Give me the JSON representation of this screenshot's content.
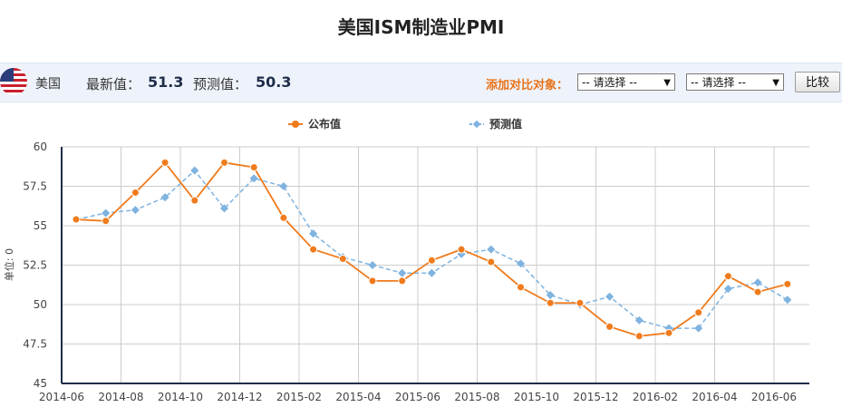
{
  "page": {
    "title": "美国ISM制造业PMI",
    "country": "美国",
    "latest_label": "最新值：",
    "latest_value": "51.3",
    "forecast_label": "预测值：",
    "forecast_value": "50.3",
    "compare_label": "添加对比对象：",
    "select1": "-- 请选择 --",
    "select2": "-- 请选择 --",
    "compare_button": "比较"
  },
  "colors": {
    "published": "#f07b1c",
    "forecast": "#7fb3e0",
    "axis": "#1f2d4a",
    "grid": "#cccccc"
  },
  "chart_data": {
    "type": "line",
    "ylabel": "单位: 0",
    "ylim": [
      45,
      60
    ],
    "yticks": [
      "45",
      "47.5",
      "50",
      "52.5",
      "55",
      "57.5",
      "60"
    ],
    "xticks": [
      "2014-06",
      "2014-08",
      "2014-10",
      "2014-12",
      "2015-02",
      "2015-04",
      "2015-06",
      "2015-08",
      "2015-10",
      "2015-12",
      "2016-02",
      "2016-04",
      "2016-06"
    ],
    "x": [
      "2014-06",
      "2014-07",
      "2014-08",
      "2014-09",
      "2014-10",
      "2014-11",
      "2014-12",
      "2015-01",
      "2015-02",
      "2015-03",
      "2015-04",
      "2015-05",
      "2015-06",
      "2015-07",
      "2015-08",
      "2015-09",
      "2015-10",
      "2015-11",
      "2015-12",
      "2016-01",
      "2016-02",
      "2016-03",
      "2016-04",
      "2016-05",
      "2016-06"
    ],
    "legend_position": "top",
    "grid": true,
    "series": [
      {
        "name": "公布值",
        "color": "#f07b1c",
        "dashed": false,
        "marker": "circle",
        "values": [
          55.4,
          55.3,
          57.1,
          59.0,
          56.6,
          59.0,
          58.7,
          55.5,
          53.5,
          52.9,
          51.5,
          51.5,
          52.8,
          53.5,
          52.7,
          51.1,
          50.1,
          50.1,
          48.6,
          48.0,
          48.2,
          49.5,
          51.8,
          50.8,
          51.3
        ]
      },
      {
        "name": "预测值",
        "color": "#7fb3e0",
        "dashed": true,
        "marker": "diamond",
        "values": [
          55.4,
          55.8,
          56.0,
          56.8,
          58.5,
          56.1,
          58.0,
          57.5,
          54.5,
          53.0,
          52.5,
          52.0,
          52.0,
          53.2,
          53.5,
          52.6,
          50.6,
          50.0,
          50.5,
          49.0,
          48.5,
          48.5,
          51.0,
          51.4,
          50.3
        ]
      }
    ]
  }
}
